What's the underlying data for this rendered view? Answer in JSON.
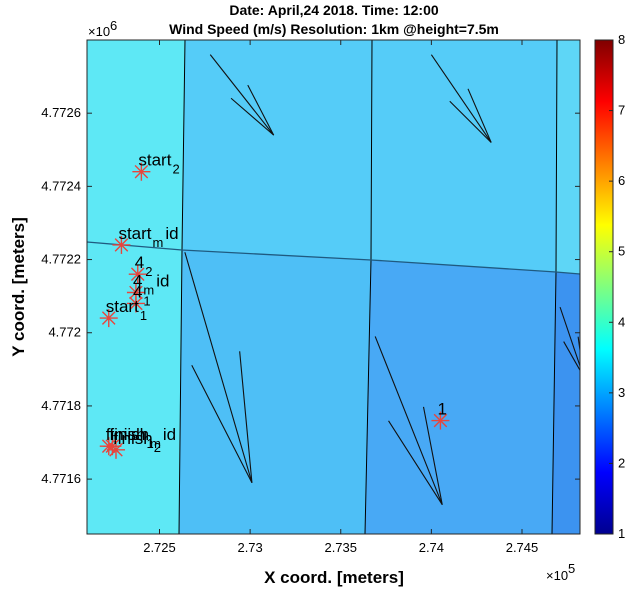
{
  "chart_data": {
    "type": "heatmap",
    "title_lines": [
      "Date: April,24 2018.     Time: 12:00",
      "Wind Speed (m/s)  Resolution: 1km @height=7.5m"
    ],
    "xlabel": "X coord. [meters]",
    "ylabel": "Y coord. [meters]",
    "x_exponent_label": "×10",
    "x_exponent": "5",
    "y_exponent_label": "×10",
    "y_exponent": "6",
    "xlim": [
      2.721,
      2.7482
    ],
    "ylim": [
      4.77145,
      4.7728
    ],
    "x_ticks": [
      2.725,
      2.73,
      2.735,
      2.74,
      2.745
    ],
    "x_tick_labels": [
      "2.725",
      "2.73",
      "2.735",
      "2.74",
      "2.745"
    ],
    "y_ticks": [
      4.7716,
      4.7718,
      4.772,
      4.7722,
      4.7724,
      4.7726
    ],
    "y_tick_labels": [
      "4.7716",
      "4.7718",
      "4.772",
      "4.7722",
      "4.7724",
      "4.7726"
    ],
    "colorbar": {
      "min": 1,
      "max": 8,
      "ticks": [
        1,
        2,
        3,
        4,
        5,
        6,
        7,
        8
      ],
      "tick_labels": [
        "1",
        "2",
        "3",
        "4",
        "5",
        "6",
        "7",
        "8"
      ],
      "colormap": "jet"
    },
    "grid_cells": [
      {
        "id": "left-column",
        "value": 3.8
      },
      {
        "id": "top-middle",
        "value": 3.5
      },
      {
        "id": "top-right",
        "value": 3.5
      },
      {
        "id": "top-far-right",
        "value": 3.6
      },
      {
        "id": "bottom-middle",
        "value": 3.4
      },
      {
        "id": "bottom-right",
        "value": 3.2
      },
      {
        "id": "bottom-far-right",
        "value": 3.0
      }
    ],
    "wind_vectors": [
      {
        "x1": 2.7278,
        "y1": 4.77276,
        "x2": 2.7313,
        "y2": 4.77254
      },
      {
        "x1": 2.74,
        "y1": 4.77276,
        "x2": 2.7433,
        "y2": 4.77252
      },
      {
        "x1": 2.7264,
        "y1": 4.77222,
        "x2": 2.7301,
        "y2": 4.77159
      },
      {
        "x1": 2.7369,
        "y1": 4.77199,
        "x2": 2.7406,
        "y2": 4.77153
      },
      {
        "x1": 2.7471,
        "y1": 4.77207,
        "x2": 2.7484,
        "y2": 4.77188
      }
    ],
    "markers": [
      {
        "label": "start",
        "sub": "2",
        "x": 2.724,
        "y": 4.77244
      },
      {
        "label": "start",
        "sub": "m",
        "tail": "id",
        "x": 2.7229,
        "y": 4.77224
      },
      {
        "label": "4",
        "sub": "2",
        "x": 2.7238,
        "y": 4.77216
      },
      {
        "label": "4",
        "sub": "m",
        "tail": "id",
        "x": 2.7237,
        "y": 4.77211
      },
      {
        "label": "4",
        "sub": "1",
        "x": 2.7237,
        "y": 4.77208
      },
      {
        "label": "start",
        "sub": "1",
        "x": 2.7222,
        "y": 4.77204
      },
      {
        "label": "finish",
        "sub": "m",
        "tail": "id",
        "x": 2.7224,
        "y": 4.77169
      },
      {
        "label": "finish",
        "sub": "2",
        "x": 2.7226,
        "y": 4.77168
      },
      {
        "label": "finish",
        "sub": "1",
        "x": 2.7222,
        "y": 4.77169
      },
      {
        "label": "1",
        "sub": "",
        "x": 2.7405,
        "y": 4.77176
      }
    ],
    "marker_color": "#e8453c"
  }
}
